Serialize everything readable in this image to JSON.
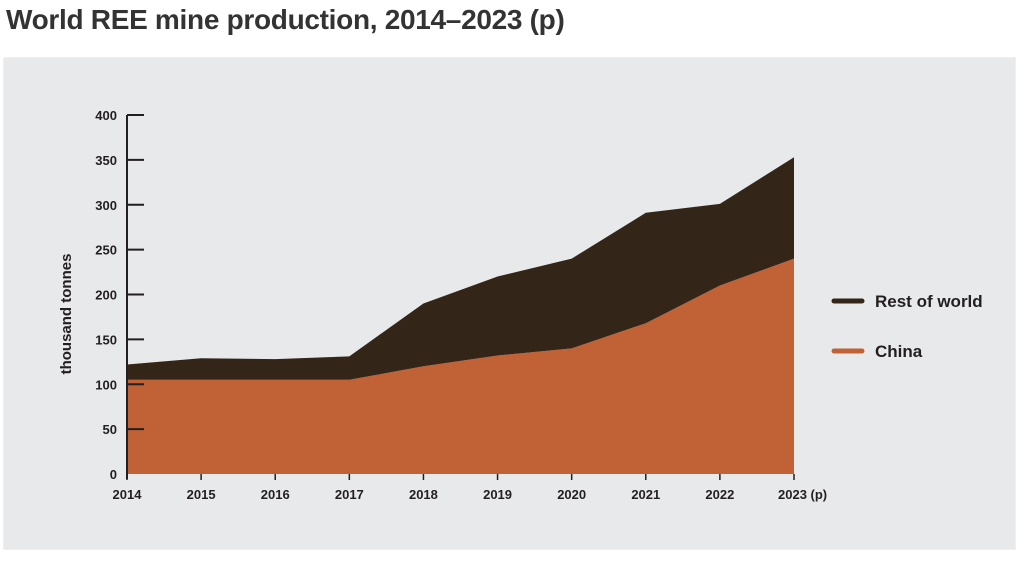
{
  "page": {
    "title": "World REE mine production, 2014–2023 (p)"
  },
  "chart_data": {
    "type": "area",
    "stacked": true,
    "title": "World REE mine production, 2014–2023 (p)",
    "xlabel": "",
    "ylabel": "thousand tonnes",
    "categories": [
      "2014",
      "2015",
      "2016",
      "2017",
      "2018",
      "2019",
      "2020",
      "2021",
      "2022",
      "2023 (p)"
    ],
    "x": [
      2014,
      2015,
      2016,
      2017,
      2018,
      2019,
      2020,
      2021,
      2022,
      2023
    ],
    "ylim": [
      0,
      400
    ],
    "yticks": [
      0,
      50,
      100,
      150,
      200,
      250,
      300,
      350,
      400
    ],
    "grid": false,
    "legend_position": "right",
    "series": [
      {
        "name": "China",
        "color": "#c06236",
        "values": [
          105,
          105,
          105,
          105,
          120,
          132,
          140,
          168,
          210,
          240
        ]
      },
      {
        "name": "Rest of world",
        "color": "#332518",
        "values": [
          17,
          24,
          23,
          26,
          70,
          88,
          100,
          123,
          91,
          113
        ]
      }
    ],
    "totals": [
      122,
      129,
      128,
      131,
      190,
      220,
      240,
      291,
      301,
      353
    ],
    "legend": [
      {
        "name": "Rest of world",
        "color": "#332518"
      },
      {
        "name": "China",
        "color": "#c06236"
      }
    ]
  }
}
